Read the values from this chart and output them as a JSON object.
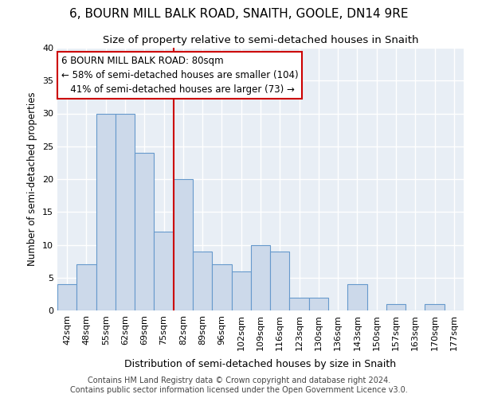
{
  "title": "6, BOURN MILL BALK ROAD, SNAITH, GOOLE, DN14 9RE",
  "subtitle": "Size of property relative to semi-detached houses in Snaith",
  "xlabel": "Distribution of semi-detached houses by size in Snaith",
  "ylabel": "Number of semi-detached properties",
  "categories": [
    "42sqm",
    "48sqm",
    "55sqm",
    "62sqm",
    "69sqm",
    "75sqm",
    "82sqm",
    "89sqm",
    "96sqm",
    "102sqm",
    "109sqm",
    "116sqm",
    "123sqm",
    "130sqm",
    "136sqm",
    "143sqm",
    "150sqm",
    "157sqm",
    "163sqm",
    "170sqm",
    "177sqm"
  ],
  "values": [
    4,
    7,
    30,
    30,
    24,
    12,
    20,
    9,
    7,
    6,
    10,
    9,
    2,
    2,
    0,
    4,
    0,
    1,
    0,
    1,
    0
  ],
  "bar_color": "#ccd9ea",
  "bar_edge_color": "#6699cc",
  "vline_index": 6,
  "vline_color": "#cc0000",
  "annotation_line1": "6 BOURN MILL BALK ROAD: 80sqm",
  "annotation_line2": "← 58% of semi-detached houses are smaller (104)",
  "annotation_line3": "   41% of semi-detached houses are larger (73) →",
  "annotation_box_color": "white",
  "annotation_box_edge_color": "#cc0000",
  "ylim": [
    0,
    40
  ],
  "yticks": [
    0,
    5,
    10,
    15,
    20,
    25,
    30,
    35,
    40
  ],
  "footer_line1": "Contains HM Land Registry data © Crown copyright and database right 2024.",
  "footer_line2": "Contains public sector information licensed under the Open Government Licence v3.0.",
  "bg_color": "#e8eef5",
  "plot_bg_color": "#e8eef5",
  "title_fontsize": 11,
  "subtitle_fontsize": 9.5,
  "xlabel_fontsize": 9,
  "ylabel_fontsize": 8.5,
  "tick_fontsize": 8,
  "footer_fontsize": 7,
  "annotation_fontsize": 8.5
}
